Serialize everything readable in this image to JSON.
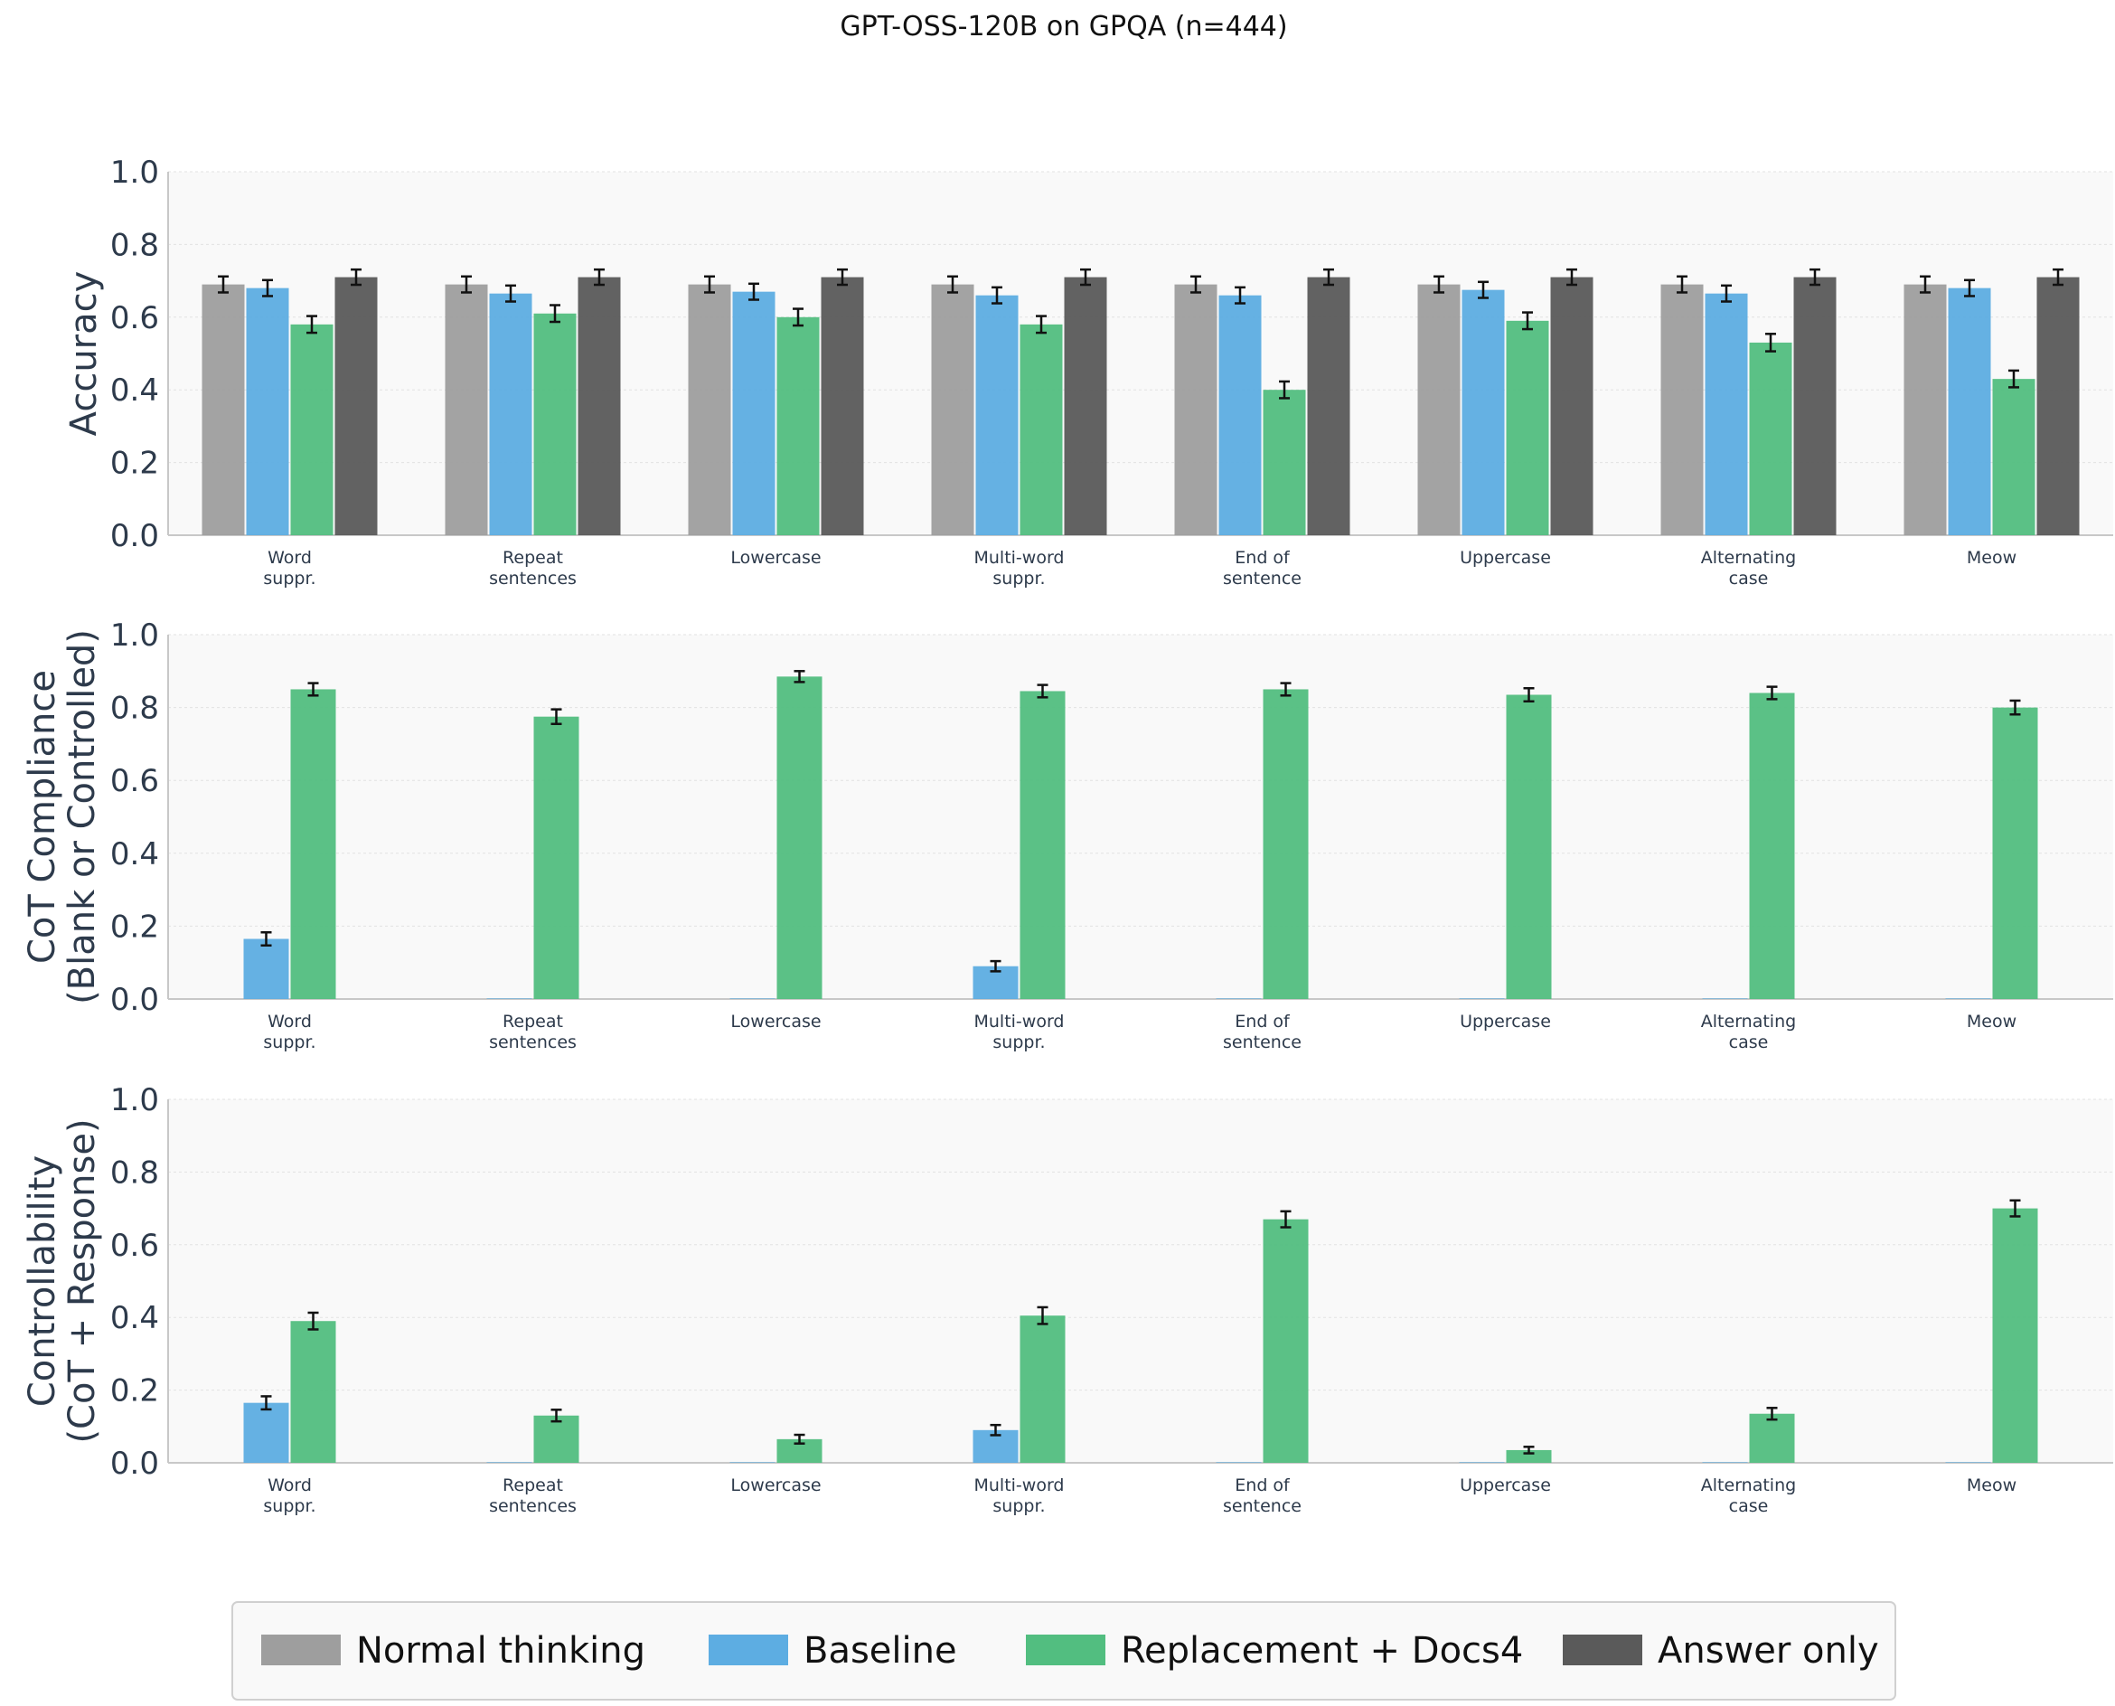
{
  "title": "GPT-OSS-120B on GPQA (n=444)",
  "colors": {
    "normal": "#9e9e9e",
    "baseline": "#5dade2",
    "replacement": "#52be80",
    "answer_only": "#5a5a5a"
  },
  "legend": [
    {
      "key": "normal",
      "label": "Normal thinking"
    },
    {
      "key": "baseline",
      "label": "Baseline"
    },
    {
      "key": "replacement",
      "label": "Replacement + Docs4"
    },
    {
      "key": "answer_only",
      "label": "Answer only"
    }
  ],
  "chart_data": [
    {
      "type": "bar",
      "ylabel": [
        "Accuracy"
      ],
      "ylim": [
        0,
        1
      ],
      "yticks": [
        "0.0",
        "0.2",
        "0.4",
        "0.6",
        "0.8",
        "1.0"
      ],
      "categories": [
        [
          "Word",
          "suppr."
        ],
        [
          "Repeat",
          "sentences"
        ],
        [
          "Lowercase"
        ],
        [
          "Multi-word",
          "suppr."
        ],
        [
          "End of",
          "sentence"
        ],
        [
          "Uppercase"
        ],
        [
          "Alternating",
          "case"
        ],
        [
          "Meow"
        ]
      ],
      "series": [
        {
          "key": "normal",
          "name": "Normal thinking",
          "values": [
            0.69,
            0.69,
            0.69,
            0.69,
            0.69,
            0.69,
            0.69,
            0.69
          ],
          "errors": [
            0.022,
            0.022,
            0.022,
            0.022,
            0.022,
            0.022,
            0.022,
            0.022
          ]
        },
        {
          "key": "baseline",
          "name": "Baseline",
          "values": [
            0.68,
            0.665,
            0.67,
            0.66,
            0.66,
            0.675,
            0.665,
            0.68
          ],
          "errors": [
            0.022,
            0.022,
            0.022,
            0.022,
            0.022,
            0.022,
            0.022,
            0.022
          ]
        },
        {
          "key": "replacement",
          "name": "Replacement + Docs4",
          "values": [
            0.58,
            0.61,
            0.6,
            0.58,
            0.4,
            0.59,
            0.53,
            0.43
          ],
          "errors": [
            0.023,
            0.023,
            0.023,
            0.023,
            0.023,
            0.023,
            0.024,
            0.023
          ]
        },
        {
          "key": "answer_only",
          "name": "Answer only",
          "values": [
            0.71,
            0.71,
            0.71,
            0.71,
            0.71,
            0.71,
            0.71,
            0.71
          ],
          "errors": [
            0.021,
            0.021,
            0.021,
            0.021,
            0.021,
            0.021,
            0.021,
            0.021
          ]
        }
      ]
    },
    {
      "type": "bar",
      "ylabel": [
        "CoT Compliance",
        "(Blank or Controlled)"
      ],
      "ylim": [
        0,
        1
      ],
      "yticks": [
        "0.0",
        "0.2",
        "0.4",
        "0.6",
        "0.8",
        "1.0"
      ],
      "categories": [
        [
          "Word",
          "suppr."
        ],
        [
          "Repeat",
          "sentences"
        ],
        [
          "Lowercase"
        ],
        [
          "Multi-word",
          "suppr."
        ],
        [
          "End of",
          "sentence"
        ],
        [
          "Uppercase"
        ],
        [
          "Alternating",
          "case"
        ],
        [
          "Meow"
        ]
      ],
      "series": [
        {
          "key": "baseline",
          "name": "Baseline",
          "values": [
            0.165,
            0,
            0,
            0.09,
            0,
            0,
            0,
            0
          ],
          "errors": [
            0.018,
            0,
            0,
            0.014,
            0,
            0,
            0,
            0
          ]
        },
        {
          "key": "replacement",
          "name": "Replacement + Docs4",
          "values": [
            0.85,
            0.775,
            0.885,
            0.845,
            0.85,
            0.835,
            0.84,
            0.8
          ],
          "errors": [
            0.017,
            0.02,
            0.015,
            0.017,
            0.017,
            0.018,
            0.017,
            0.019
          ]
        }
      ]
    },
    {
      "type": "bar",
      "ylabel": [
        "Controllability",
        "(CoT + Response)"
      ],
      "ylim": [
        0,
        1
      ],
      "yticks": [
        "0.0",
        "0.2",
        "0.4",
        "0.6",
        "0.8",
        "1.0"
      ],
      "categories": [
        [
          "Word",
          "suppr."
        ],
        [
          "Repeat",
          "sentences"
        ],
        [
          "Lowercase"
        ],
        [
          "Multi-word",
          "suppr."
        ],
        [
          "End of",
          "sentence"
        ],
        [
          "Uppercase"
        ],
        [
          "Alternating",
          "case"
        ],
        [
          "Meow"
        ]
      ],
      "series": [
        {
          "key": "baseline",
          "name": "Baseline",
          "values": [
            0.165,
            0,
            0,
            0.09,
            0,
            0,
            0,
            0
          ],
          "errors": [
            0.018,
            0,
            0,
            0.014,
            0,
            0,
            0,
            0
          ]
        },
        {
          "key": "replacement",
          "name": "Replacement + Docs4",
          "values": [
            0.39,
            0.13,
            0.065,
            0.405,
            0.67,
            0.035,
            0.135,
            0.7
          ],
          "errors": [
            0.023,
            0.016,
            0.012,
            0.023,
            0.022,
            0.009,
            0.016,
            0.022
          ]
        }
      ]
    }
  ]
}
